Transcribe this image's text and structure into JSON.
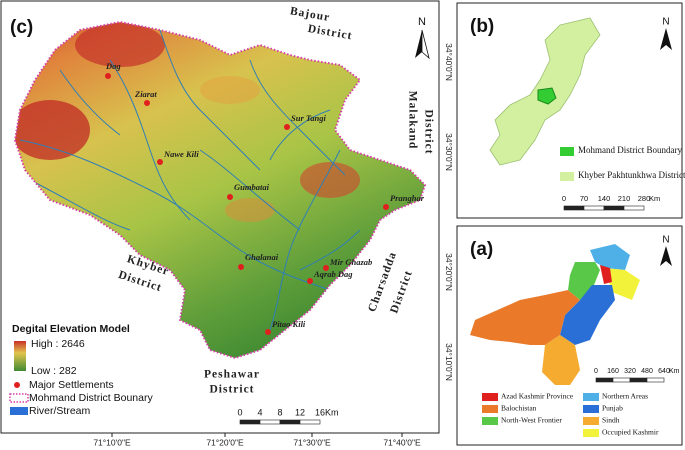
{
  "panels": {
    "c": {
      "label": "(c)",
      "north": "N",
      "districts": [
        {
          "lines": [
            "Bajour",
            "District"
          ]
        },
        {
          "lines": [
            "Malakand",
            "District"
          ]
        },
        {
          "lines": [
            "Charsadda",
            "District"
          ]
        },
        {
          "lines": [
            "Peshawar",
            "District"
          ]
        },
        {
          "lines": [
            "Khyber",
            "District"
          ]
        }
      ],
      "settlements": [
        "Dag",
        "Ziarat",
        "Sur Tangi",
        "Nawe Kili",
        "Gumbatai",
        "Pranghar",
        "Ghalanai",
        "Mir Ghazab",
        "Aqrab Dag",
        "Pitao Kili"
      ],
      "legend": {
        "title": "Degital Elevation Model",
        "high": "High : 2646",
        "low": "Low : 282",
        "settlements": "Major Settlements",
        "boundary": "Mohmand District Bounary",
        "river": "River/Stream"
      },
      "scale": {
        "ticks": [
          "0",
          "4",
          "8",
          "12",
          "16"
        ],
        "unit": "Km"
      },
      "longitudes": [
        "71°10'0\"E",
        "71°20'0\"E",
        "71°30'0\"E",
        "71°40'0\"E"
      ],
      "latitudes": [
        "34°40'0\"N",
        "34°30'0\"N",
        "34°20'0\"N",
        "34°10'0\"N"
      ]
    },
    "b": {
      "label": "(b)",
      "north": "N",
      "legend": [
        "Mohmand District Boundary",
        "Khyber Pakhtunkhwa Districts Boundary"
      ],
      "scale": {
        "ticks": [
          "0",
          "70",
          "140",
          "210",
          "280"
        ],
        "unit": "Km"
      }
    },
    "a": {
      "label": "(a)",
      "north": "N",
      "legend": [
        "Azad Kashmir Province",
        "Balochistan",
        "North-West Frontier",
        "Northern Areas",
        "Punjab",
        "Sindh",
        "Occupied Kashmir"
      ],
      "scale": {
        "ticks": [
          "0",
          "160",
          "320",
          "480",
          "640"
        ],
        "unit": "Km"
      }
    }
  }
}
